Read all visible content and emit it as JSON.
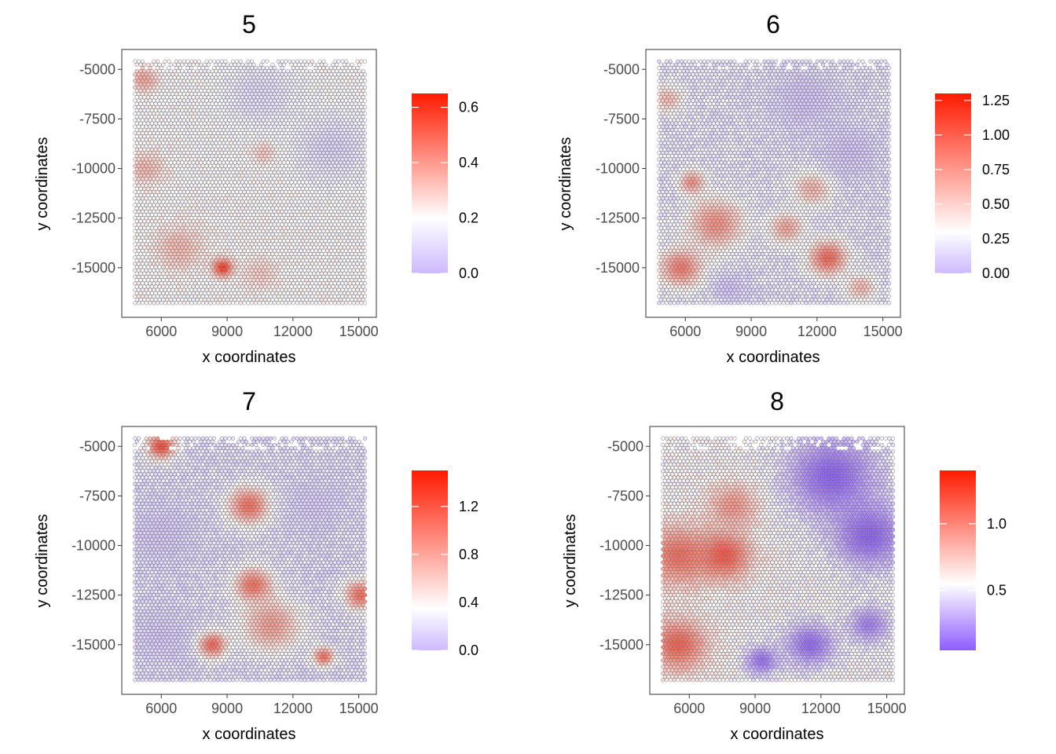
{
  "chart_data": [
    {
      "type": "scatter",
      "title": "5",
      "xlabel": "x coordinates",
      "ylabel": "y coordinates",
      "xlim": [
        4200,
        15800
      ],
      "ylim": [
        -17500,
        -4000
      ],
      "x_ticks": [
        6000,
        9000,
        12000,
        15000
      ],
      "x_tick_labels": [
        "6000",
        "9000",
        "12000",
        "15000"
      ],
      "y_ticks": [
        -5000,
        -7500,
        -10000,
        -12500,
        -15000
      ],
      "y_tick_labels": [
        "-5000",
        "-7500",
        "-10000",
        "-12500",
        "-15000"
      ],
      "spots_x_range": [
        4800,
        15300
      ],
      "spots_y_range": [
        -16800,
        -4600
      ],
      "color_scale": {
        "low": "#cdb9ff",
        "mid": "#ffffff",
        "high": "#ff1a00",
        "min": 0.0,
        "mid_value": 0.2,
        "max": 0.65
      },
      "legend_ticks": [
        0.0,
        0.2,
        0.4,
        0.6
      ],
      "legend_tick_labels": [
        "0.0",
        "0.2",
        "0.4",
        "0.6"
      ],
      "legend_placement": "right",
      "background_value": 0.2,
      "hotspots": [
        {
          "x": 8800,
          "y": -15000,
          "value": 0.62,
          "radius": 500
        },
        {
          "x": 5200,
          "y": -5500,
          "value": 0.38,
          "radius": 700
        },
        {
          "x": 5300,
          "y": -10000,
          "value": 0.34,
          "radius": 900
        },
        {
          "x": 6800,
          "y": -14000,
          "value": 0.34,
          "radius": 1200
        },
        {
          "x": 10500,
          "y": -15300,
          "value": 0.3,
          "radius": 900
        },
        {
          "x": 10700,
          "y": -9200,
          "value": 0.32,
          "radius": 600
        },
        {
          "x": 13800,
          "y": -9000,
          "value": 0.08,
          "radius": 1800
        },
        {
          "x": 10500,
          "y": -6200,
          "value": 0.1,
          "radius": 1800
        }
      ]
    },
    {
      "type": "scatter",
      "title": "6",
      "xlabel": "x coordinates",
      "ylabel": "y coordinates",
      "xlim": [
        4200,
        15800
      ],
      "ylim": [
        -17500,
        -4000
      ],
      "x_ticks": [
        6000,
        9000,
        12000,
        15000
      ],
      "x_tick_labels": [
        "6000",
        "9000",
        "12000",
        "15000"
      ],
      "y_ticks": [
        -5000,
        -7500,
        -10000,
        -12500,
        -15000
      ],
      "y_tick_labels": [
        "-5000",
        "-7500",
        "-10000",
        "-12500",
        "-15000"
      ],
      "spots_x_range": [
        4800,
        15300
      ],
      "spots_y_range": [
        -16800,
        -4600
      ],
      "color_scale": {
        "low": "#cdb9ff",
        "mid": "#ffffff",
        "high": "#ff1a00",
        "min": 0.0,
        "mid_value": 0.3,
        "max": 1.3
      },
      "legend_ticks": [
        0.0,
        0.25,
        0.5,
        0.75,
        1.0,
        1.25
      ],
      "legend_tick_labels": [
        "0.00",
        "0.25",
        "0.50",
        "0.75",
        "1.00",
        "1.25"
      ],
      "legend_placement": "right",
      "background_value": 0.2,
      "hotspots": [
        {
          "x": 5800,
          "y": -15000,
          "value": 0.9,
          "radius": 1000
        },
        {
          "x": 7400,
          "y": -12800,
          "value": 0.8,
          "radius": 1300
        },
        {
          "x": 6300,
          "y": -10700,
          "value": 0.8,
          "radius": 600
        },
        {
          "x": 12500,
          "y": -14500,
          "value": 1.0,
          "radius": 900
        },
        {
          "x": 10600,
          "y": -13000,
          "value": 0.7,
          "radius": 800
        },
        {
          "x": 11800,
          "y": -11000,
          "value": 0.65,
          "radius": 900
        },
        {
          "x": 5200,
          "y": -6500,
          "value": 0.6,
          "radius": 700
        },
        {
          "x": 14000,
          "y": -16000,
          "value": 0.6,
          "radius": 700
        },
        {
          "x": 11500,
          "y": -6500,
          "value": 0.05,
          "radius": 1800
        },
        {
          "x": 13500,
          "y": -9200,
          "value": 0.05,
          "radius": 1500
        },
        {
          "x": 8000,
          "y": -16000,
          "value": 0.05,
          "radius": 800
        }
      ]
    },
    {
      "type": "scatter",
      "title": "7",
      "xlabel": "x coordinates",
      "ylabel": "y coordinates",
      "xlim": [
        4200,
        15800
      ],
      "ylim": [
        -17500,
        -4000
      ],
      "x_ticks": [
        6000,
        9000,
        12000,
        15000
      ],
      "x_tick_labels": [
        "6000",
        "9000",
        "12000",
        "15000"
      ],
      "y_ticks": [
        -5000,
        -7500,
        -10000,
        -12500,
        -15000
      ],
      "y_tick_labels": [
        "-5000",
        "-7500",
        "-10000",
        "-12500",
        "-15000"
      ],
      "spots_x_range": [
        4800,
        15300
      ],
      "spots_y_range": [
        -16800,
        -4600
      ],
      "color_scale": {
        "low": "#cdb9ff",
        "mid": "#ffffff",
        "high": "#ff1a00",
        "min": 0.0,
        "mid_value": 0.35,
        "max": 1.5
      },
      "legend_ticks": [
        0.0,
        0.4,
        0.8,
        1.2
      ],
      "legend_tick_labels": [
        "0.0",
        "0.4",
        "0.8",
        "1.2"
      ],
      "legend_placement": "right",
      "background_value": 0.2,
      "hotspots": [
        {
          "x": 6000,
          "y": -5000,
          "value": 1.3,
          "radius": 700
        },
        {
          "x": 10000,
          "y": -8000,
          "value": 1.1,
          "radius": 1000
        },
        {
          "x": 10200,
          "y": -12000,
          "value": 1.1,
          "radius": 900
        },
        {
          "x": 8300,
          "y": -15000,
          "value": 1.2,
          "radius": 700
        },
        {
          "x": 15100,
          "y": -12500,
          "value": 1.1,
          "radius": 800
        },
        {
          "x": 13400,
          "y": -15600,
          "value": 1.1,
          "radius": 500
        },
        {
          "x": 11000,
          "y": -14000,
          "value": 0.85,
          "radius": 1400
        },
        {
          "x": 6000,
          "y": -9500,
          "value": 0.08,
          "radius": 1800
        },
        {
          "x": 6000,
          "y": -14500,
          "value": 0.08,
          "radius": 1500
        },
        {
          "x": 13000,
          "y": -8000,
          "value": 0.1,
          "radius": 1500
        }
      ]
    },
    {
      "type": "scatter",
      "title": "8",
      "xlabel": "x coordinates",
      "ylabel": "y coordinates",
      "xlim": [
        4200,
        15800
      ],
      "ylim": [
        -17500,
        -4000
      ],
      "x_ticks": [
        6000,
        9000,
        12000,
        15000
      ],
      "x_tick_labels": [
        "6000",
        "9000",
        "12000",
        "15000"
      ],
      "y_ticks": [
        -5000,
        -7500,
        -10000,
        -12500,
        -15000
      ],
      "y_tick_labels": [
        "-5000",
        "-7500",
        "-10000",
        "-12500",
        "-15000"
      ],
      "spots_x_range": [
        4800,
        15300
      ],
      "spots_y_range": [
        -16800,
        -4600
      ],
      "color_scale": {
        "low": "#8f5cff",
        "mid": "#ffffff",
        "high": "#ff1a00",
        "min": 0.05,
        "mid_value": 0.55,
        "max": 1.4
      },
      "legend_ticks": [
        0.5,
        1.0
      ],
      "legend_tick_labels": [
        "0.5",
        "1.0"
      ],
      "legend_placement": "right",
      "background_value": 0.55,
      "hotspots": [
        {
          "x": 5500,
          "y": -10500,
          "value": 1.1,
          "radius": 1600
        },
        {
          "x": 7600,
          "y": -10500,
          "value": 1.2,
          "radius": 1300
        },
        {
          "x": 5500,
          "y": -15000,
          "value": 1.15,
          "radius": 1400
        },
        {
          "x": 8000,
          "y": -8000,
          "value": 0.95,
          "radius": 1200
        },
        {
          "x": 12500,
          "y": -6500,
          "value": 0.05,
          "radius": 2200
        },
        {
          "x": 14200,
          "y": -9500,
          "value": 0.05,
          "radius": 1800
        },
        {
          "x": 11500,
          "y": -15000,
          "value": 0.08,
          "radius": 1200
        },
        {
          "x": 14200,
          "y": -14000,
          "value": 0.15,
          "radius": 1000
        },
        {
          "x": 9300,
          "y": -15800,
          "value": 0.1,
          "radius": 800
        }
      ]
    }
  ]
}
